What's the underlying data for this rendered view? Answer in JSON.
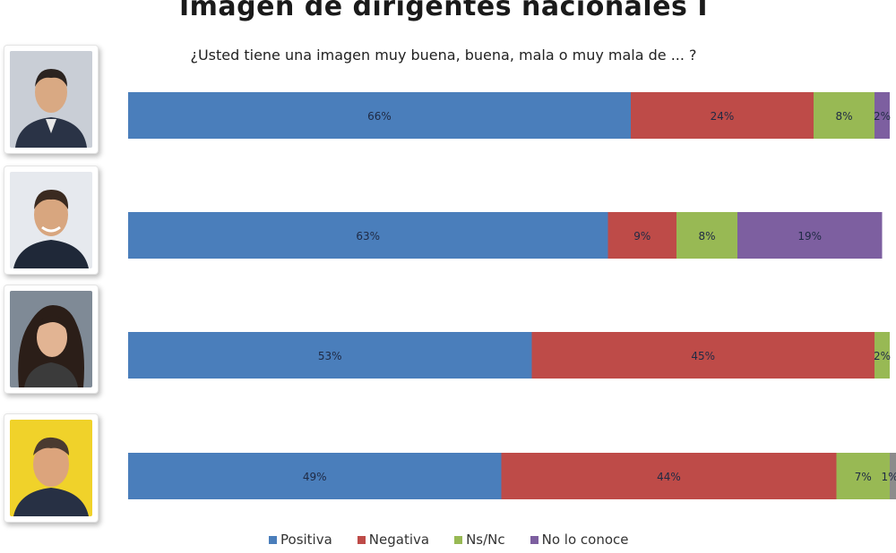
{
  "title": "Imagen de dirigentes nacionales I",
  "subtitle": "¿Usted tiene una imagen muy buena, buena, mala o muy mala de ... ?",
  "colors": {
    "positiva": "#4a7ebb",
    "negativa": "#be4b48",
    "nsnc": "#98b954",
    "no_lo_conoce": "#7d5fa0",
    "extra": "#8c8c8c"
  },
  "photos": [
    {
      "icon": "person-photo-icon"
    },
    {
      "icon": "person-photo-icon"
    },
    {
      "icon": "person-photo-icon"
    },
    {
      "icon": "person-photo-icon"
    }
  ],
  "legend": [
    {
      "label": "Positiva",
      "color": "#4a7ebb"
    },
    {
      "label": "Negativa",
      "color": "#be4b48"
    },
    {
      "label": "Ns/Nc",
      "color": "#98b954"
    },
    {
      "label": "No lo conoce",
      "color": "#7d5fa0"
    }
  ],
  "chart_data": {
    "type": "bar",
    "orientation": "horizontal",
    "stacked": true,
    "title": "Imagen de dirigentes nacionales I",
    "subtitle": "¿Usted tiene una imagen muy buena, buena, mala o muy mala de ... ?",
    "xlim": [
      0,
      100
    ],
    "grid": false,
    "legend_position": "bottom",
    "categories": [
      "",
      "",
      "",
      ""
    ],
    "series": [
      {
        "name": "Positiva",
        "values": [
          66,
          63,
          53,
          49
        ],
        "labels": [
          "66%",
          "63%",
          "53%",
          "49%"
        ]
      },
      {
        "name": "Negativa",
        "values": [
          24,
          9,
          45,
          44
        ],
        "labels": [
          "24%",
          "9%",
          "45%",
          "44%"
        ]
      },
      {
        "name": "Ns/Nc",
        "values": [
          8,
          8,
          2,
          7
        ],
        "labels": [
          "8%",
          "8%",
          "2%",
          "7%"
        ]
      },
      {
        "name": "No lo conoce",
        "values": [
          2,
          19,
          0,
          0
        ],
        "labels": [
          "2%",
          "19%",
          "",
          ""
        ]
      },
      {
        "name": "",
        "values": [
          0,
          0,
          0,
          1
        ],
        "labels": [
          "",
          "",
          "",
          "1%"
        ]
      }
    ]
  }
}
